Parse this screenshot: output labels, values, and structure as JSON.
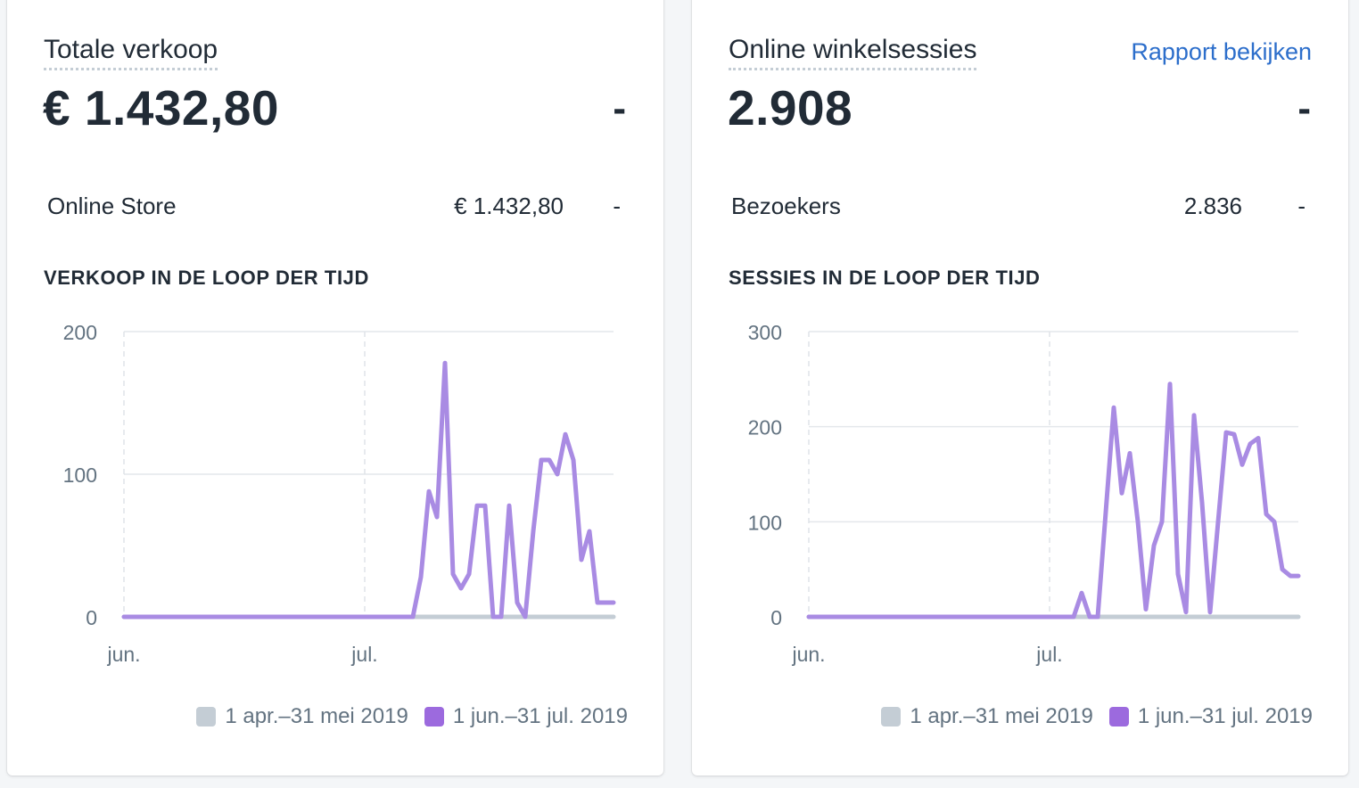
{
  "cards": [
    {
      "title": "Totale verkoop",
      "value": "€ 1.432,80",
      "value_change": "-",
      "row": {
        "label": "Online Store",
        "value": "€ 1.432,80",
        "change": "-"
      },
      "section_title": "VERKOOP IN DE LOOP DER TIJD",
      "chart_data": {
        "type": "line",
        "title": "VERKOOP IN DE LOOP DER TIJD",
        "ylim": [
          0,
          200
        ],
        "y_ticks": [
          "0",
          "100",
          "200"
        ],
        "x_ticks": [
          "jun.",
          "jul."
        ],
        "x_tick_days": [
          0,
          30
        ],
        "x_range_days": [
          0,
          61
        ],
        "grid": true,
        "legend_position": "bottom-right",
        "series": [
          {
            "name": "1 apr.–31 mei 2019",
            "color": "#c4cdd5",
            "x": [
              0,
              61
            ],
            "values": [
              0,
              0
            ]
          },
          {
            "name": "1 jun.–31 jul. 2019",
            "color": "#9c6ade",
            "x": [
              0,
              36,
              37,
              38,
              39,
              40,
              41,
              42,
              43,
              44,
              45,
              46,
              47,
              48,
              49,
              50,
              51,
              52,
              53,
              54,
              55,
              56,
              57,
              58,
              59,
              60,
              61
            ],
            "values": [
              0,
              0,
              28,
              88,
              70,
              178,
              30,
              20,
              30,
              78,
              78,
              0,
              0,
              78,
              10,
              0,
              60,
              110,
              110,
              100,
              128,
              110,
              40,
              60,
              10,
              10,
              10
            ]
          }
        ]
      }
    },
    {
      "title": "Online winkelsessies",
      "link": "Rapport bekijken",
      "value": "2.908",
      "value_change": "-",
      "row": {
        "label": "Bezoekers",
        "value": "2.836",
        "change": "-"
      },
      "section_title": "SESSIES IN DE LOOP DER TIJD",
      "chart_data": {
        "type": "line",
        "title": "SESSIES IN DE LOOP DER TIJD",
        "ylim": [
          0,
          300
        ],
        "y_ticks": [
          "0",
          "100",
          "200",
          "300"
        ],
        "x_ticks": [
          "jun.",
          "jul."
        ],
        "x_tick_days": [
          0,
          30
        ],
        "x_range_days": [
          0,
          61
        ],
        "grid": true,
        "legend_position": "bottom-right",
        "series": [
          {
            "name": "1 apr.–31 mei 2019",
            "color": "#c4cdd5",
            "x": [
              0,
              61
            ],
            "values": [
              0,
              0
            ]
          },
          {
            "name": "1 jun.–31 jul. 2019",
            "color": "#9c6ade",
            "x": [
              0,
              33,
              34,
              35,
              36,
              37,
              38,
              39,
              40,
              41,
              42,
              43,
              44,
              45,
              46,
              47,
              48,
              49,
              50,
              51,
              52,
              53,
              54,
              55,
              56,
              57,
              58,
              59,
              60,
              61
            ],
            "values": [
              0,
              0,
              25,
              0,
              0,
              110,
              220,
              130,
              172,
              100,
              8,
              75,
              100,
              245,
              45,
              5,
              212,
              120,
              5,
              100,
              194,
              192,
              160,
              182,
              188,
              108,
              100,
              50,
              43,
              43
            ]
          }
        ]
      }
    }
  ]
}
